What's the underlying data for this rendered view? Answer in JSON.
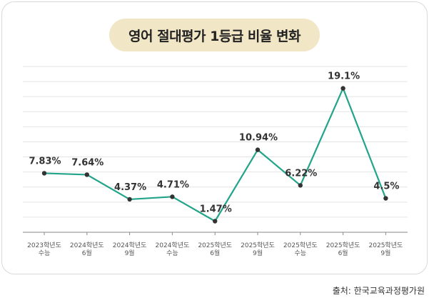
{
  "chart_data": {
    "type": "line",
    "title": "영어 절대평가 1등급 비율 변화",
    "categories": [
      [
        "2023학년도",
        "수능"
      ],
      [
        "2024학년도",
        "6월"
      ],
      [
        "2024학년도",
        "9월"
      ],
      [
        "2024학년도",
        "수능"
      ],
      [
        "2025학년도",
        "6월"
      ],
      [
        "2025학년도",
        "9월"
      ],
      [
        "2025학년도",
        "수능"
      ],
      [
        "2025학년도",
        "6월"
      ],
      [
        "2025학년도",
        "9월"
      ]
    ],
    "values": [
      7.83,
      7.64,
      4.37,
      4.71,
      1.47,
      10.94,
      6.22,
      19.1,
      4.5
    ],
    "value_labels": [
      "7.83%",
      "7.64%",
      "4.37%",
      "4.71%",
      "1.47%",
      "10.94%",
      "6.22%",
      "19.1%",
      "4.5%"
    ],
    "ylim": [
      0,
      22
    ],
    "grid": true,
    "xlabel": "",
    "ylabel": ""
  },
  "source": "출처: 한국교육과정평가원",
  "colors": {
    "line": "#22a48a",
    "marker": "#333333",
    "grid": "#e4e4e4",
    "axis": "#888888",
    "pill": "#f1e6c6"
  }
}
